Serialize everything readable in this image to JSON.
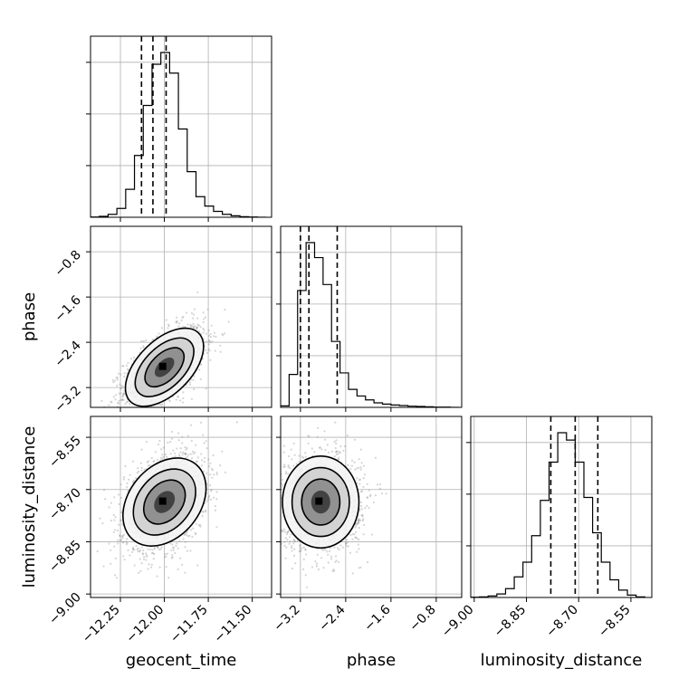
{
  "chart_data": {
    "type": "corner",
    "parameters": [
      "geocent_time",
      "phase",
      "luminosity_distance"
    ],
    "labels": {
      "geocent_time": "geocent_time",
      "phase": "phase",
      "luminosity_distance": "luminosity_distance"
    },
    "ranges": {
      "geocent_time": [
        -12.42,
        -11.39
      ],
      "phase": [
        -3.55,
        -0.35
      ],
      "luminosity_distance": [
        -9.01,
        -8.49
      ]
    },
    "ticks": {
      "geocent_time": [
        -12.25,
        -12.0,
        -11.75,
        -11.5
      ],
      "phase": [
        -3.2,
        -2.4,
        -1.6,
        -0.8
      ],
      "luminosity_distance": [
        -9.0,
        -8.85,
        -8.7,
        -8.55
      ]
    },
    "tick_labels": {
      "geocent_time": [
        "−12.25",
        "−12.00",
        "−11.75",
        "−11.50"
      ],
      "phase": [
        "−3.2",
        "−2.4",
        "−1.6",
        "−0.8"
      ],
      "luminosity_distance": [
        "−9.00",
        "−8.85",
        "−8.70",
        "−8.55"
      ]
    },
    "quantiles": {
      "geocent_time": [
        -12.13,
        -12.065,
        -11.99
      ],
      "phase": [
        -3.2,
        -3.05,
        -2.55
      ],
      "luminosity_distance": [
        -8.78,
        -8.71,
        -8.645
      ]
    },
    "histograms": {
      "geocent_time": {
        "edges": [
          -12.42,
          -12.37,
          -12.32,
          -12.27,
          -12.22,
          -12.17,
          -12.12,
          -12.07,
          -12.02,
          -11.97,
          -11.92,
          -11.87,
          -11.82,
          -11.77,
          -11.72,
          -11.67,
          -11.62,
          -11.57,
          -11.52,
          -11.47,
          -11.42
        ],
        "counts": [
          1,
          3,
          10,
          30,
          95,
          210,
          380,
          520,
          560,
          490,
          300,
          155,
          70,
          38,
          20,
          10,
          5,
          2,
          1,
          0
        ]
      },
      "phase": {
        "edges": [
          -3.55,
          -3.4,
          -3.25,
          -3.1,
          -2.95,
          -2.8,
          -2.65,
          -2.5,
          -2.35,
          -2.2,
          -2.05,
          -1.9,
          -1.75,
          -1.6,
          -1.45,
          -1.3,
          -1.15,
          -1.0,
          -0.85,
          -0.7,
          -0.55,
          -0.4
        ],
        "counts": [
          5,
          110,
          390,
          550,
          500,
          410,
          220,
          115,
          60,
          38,
          25,
          15,
          11,
          8,
          6,
          4,
          3,
          2,
          1,
          1,
          0
        ]
      },
      "luminosity_distance": {
        "edges": [
          -9.01,
          -8.985,
          -8.96,
          -8.935,
          -8.91,
          -8.885,
          -8.86,
          -8.835,
          -8.81,
          -8.785,
          -8.76,
          -8.735,
          -8.71,
          -8.685,
          -8.66,
          -8.635,
          -8.61,
          -8.585,
          -8.56,
          -8.535,
          -8.51
        ],
        "counts": [
          1,
          2,
          5,
          12,
          30,
          70,
          120,
          210,
          330,
          460,
          560,
          535,
          460,
          340,
          220,
          120,
          60,
          25,
          8,
          2
        ]
      }
    },
    "correlations": {
      "phase|geocent_time": 0.6,
      "luminosity_distance|geocent_time": 0.35,
      "luminosity_distance|phase": 0.0
    },
    "grid": true,
    "color": "#000000"
  }
}
